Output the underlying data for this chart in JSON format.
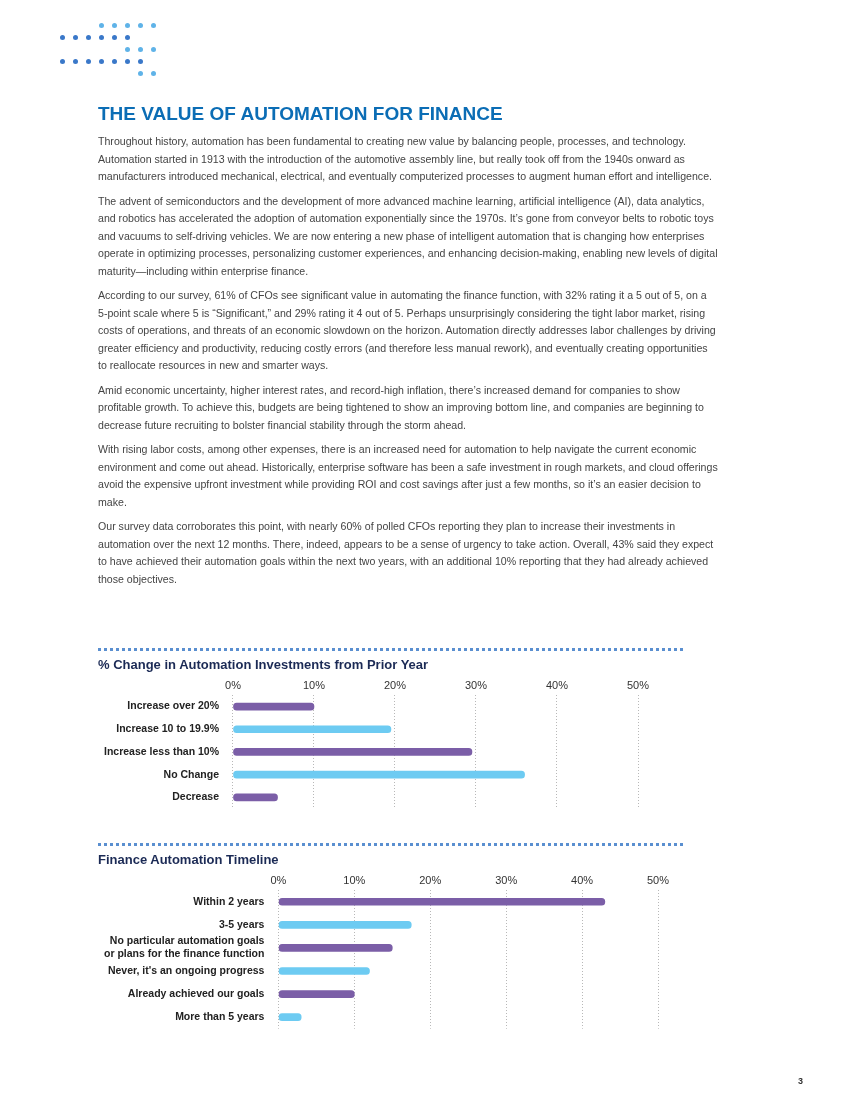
{
  "chart_data": [
    {
      "type": "other",
      "title": "THE VALUE OF AUTOMATION FOR FINANCE",
      "annotations": [
        "Throughout history, automation has been fundamental to creating new value by balancing people, processes, and technology. Automation started in 1913 with the introduction of the automotive assembly line, but really took off from the 1940s onward as manufacturers introduced mechanical, electrical, and eventually computerized processes to augment human effort and intelligence.",
        "The advent of semiconductors and the development of more advanced machine learning, artificial intelligence (AI), data analytics, and robotics has accelerated the adoption of automation exponentially since the 1970s. It’s gone from conveyor belts to robotic toys and vacuums to self-driving vehicles. We are now entering a new phase of intelligent automation that is changing how enterprises operate in optimizing processes, personalizing customer experiences, and enhancing decision-making, enabling new levels of digital maturity—including within enterprise finance.",
        "According to our survey, 61% of CFOs see significant value in automating the finance function, with 32% rating it a 5 out of 5, on a 5-point scale where 5 is “Significant,” and 29% rating it 4 out of 5. Perhaps unsurprisingly considering the tight labor market, rising costs of operations, and threats of an economic slowdown on the horizon. Automation directly addresses labor challenges by driving greater efficiency and productivity, reducing costly errors (and therefore less manual rework), and eventually creating opportunities to reallocate resources in new and smarter ways.",
        "Amid economic uncertainty, higher interest rates, and record-high inflation, there’s increased demand for companies to show profitable growth. To achieve this, budgets are being tightened to show an improving bottom line, and companies are beginning to decrease future recruiting to bolster financial stability through the storm ahead.",
        "With rising labor costs, among other expenses, there is an increased need for automation to help navigate the current economic environment and come out ahead. Historically, enterprise software has been a safe investment in rough markets, and cloud offerings avoid the expensive upfront investment while providing ROI and cost savings after just a few months, so it’s an easier decision to make.",
        "Our survey data corroborates this point, with nearly 60% of polled CFOs reporting they plan to increase their investments in automation over the next 12 months. There, indeed, appears to be a sense of urgency to take action. Overall, 43% said they expect to have achieved their automation goals within the next two years, with an additional 10% reporting that they had already achieved those objectives."
      ]
    },
    {
      "type": "bar",
      "orientation": "horizontal",
      "title": "% Change in Automation Investments from Prior Year",
      "categories": [
        "Increase over 20%",
        "Increase 10 to 19.9%",
        "Increase less than 10%",
        "No Change",
        "Decrease"
      ],
      "values": [
        10,
        19.5,
        29.5,
        36,
        5.5
      ],
      "colors": [
        "#7b5ea7",
        "#6dcbf2",
        "#7b5ea7",
        "#6dcbf2",
        "#7b5ea7"
      ],
      "xlim": [
        0,
        50
      ],
      "xticks": [
        {
          "value": 0,
          "label": "0%"
        },
        {
          "value": 10,
          "label": "10%"
        },
        {
          "value": 20,
          "label": "20%"
        },
        {
          "value": 30,
          "label": "30%"
        },
        {
          "value": 40,
          "label": "40%"
        },
        {
          "value": 50,
          "label": "50%"
        }
      ],
      "grid": "x"
    },
    {
      "type": "bar",
      "orientation": "horizontal",
      "title": "Finance Automation Timeline",
      "categories": [
        "Within 2 years",
        "3-5 years",
        "No particular automation goals\nor plans for the finance function",
        "Never, it's an ongoing progress",
        "Already achieved our goals",
        "More than 5 years"
      ],
      "values": [
        43,
        17.5,
        15,
        12,
        10,
        3
      ],
      "colors": [
        "#7b5ea7",
        "#6dcbf2",
        "#7b5ea7",
        "#6dcbf2",
        "#7b5ea7",
        "#6dcbf2"
      ],
      "xlim": [
        0,
        50
      ],
      "xticks": [
        {
          "value": 0,
          "label": "0%"
        },
        {
          "value": 10,
          "label": "10%"
        },
        {
          "value": 20,
          "label": "20%"
        },
        {
          "value": 30,
          "label": "30%"
        },
        {
          "value": 40,
          "label": "40%"
        },
        {
          "value": 50,
          "label": "50%"
        }
      ],
      "grid": "x",
      "annotations": [
        "3"
      ]
    }
  ]
}
